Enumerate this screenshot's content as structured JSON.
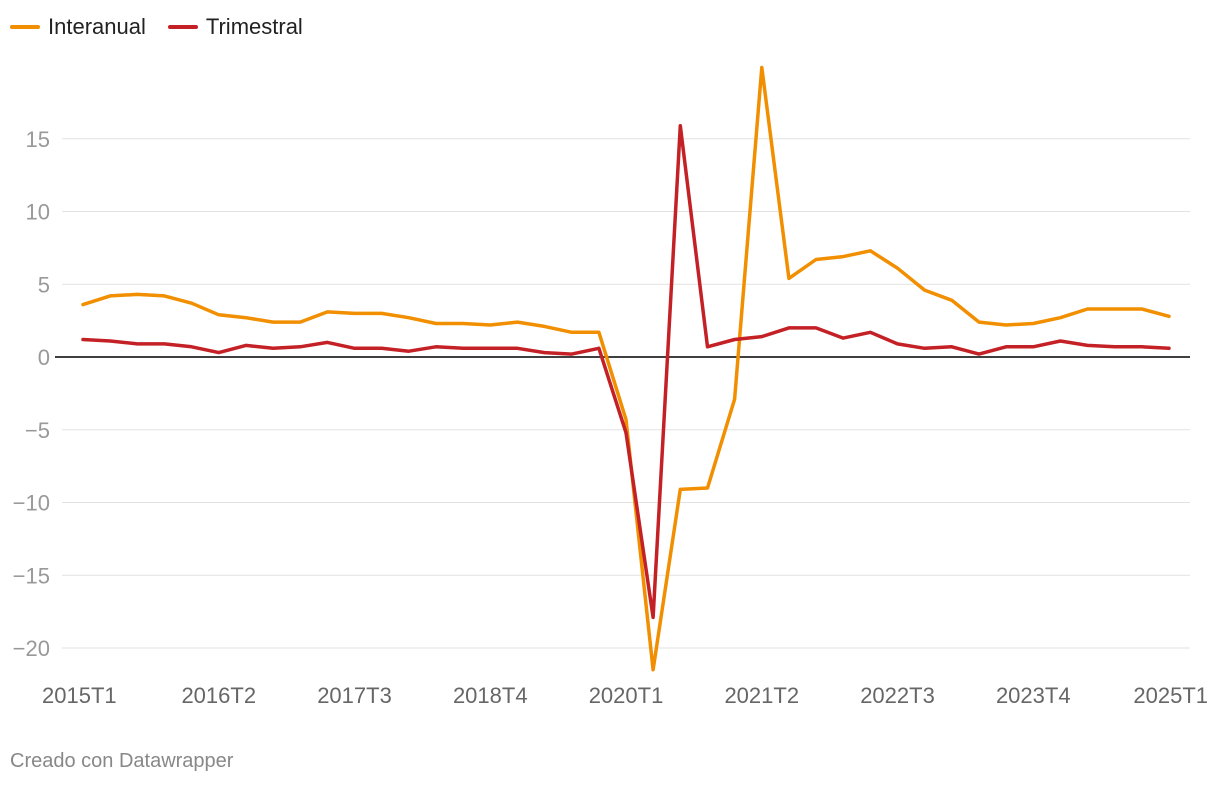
{
  "legend": {
    "items": [
      {
        "label": "Interanual",
        "color": "#f18f01"
      },
      {
        "label": "Trimestral",
        "color": "#c42126"
      }
    ]
  },
  "footer": {
    "text": "Creado con Datawrapper"
  },
  "chart_data": {
    "type": "line",
    "title": "",
    "xlabel": "",
    "ylabel": "",
    "ylim": [
      -22,
      20
    ],
    "y_ticks": [
      15,
      10,
      5,
      0,
      -5,
      -10,
      -15,
      -20
    ],
    "y_tick_labels": [
      "15",
      "10",
      "5",
      "0",
      "−5",
      "−10",
      "−15",
      "−20"
    ],
    "x_tick_labels": [
      "2015T1",
      "2016T2",
      "2017T3",
      "2018T4",
      "2020T1",
      "2021T2",
      "2022T3",
      "2023T4",
      "2025T1"
    ],
    "grid": true,
    "legend_position": "top-left",
    "x": [
      "2015T1",
      "2015T2",
      "2015T3",
      "2015T4",
      "2016T1",
      "2016T2",
      "2016T3",
      "2016T4",
      "2017T1",
      "2017T2",
      "2017T3",
      "2017T4",
      "2018T1",
      "2018T2",
      "2018T3",
      "2018T4",
      "2019T1",
      "2019T2",
      "2019T3",
      "2019T4",
      "2020T1",
      "2020T2",
      "2020T3",
      "2020T4",
      "2021T1",
      "2021T2",
      "2021T3",
      "2021T4",
      "2022T1",
      "2022T2",
      "2022T3",
      "2022T4",
      "2023T1",
      "2023T2",
      "2023T3",
      "2023T4",
      "2024T1",
      "2024T2",
      "2024T3",
      "2024T4",
      "2025T1"
    ],
    "series": [
      {
        "name": "Interanual",
        "color": "#f18f01",
        "values": [
          3.6,
          4.2,
          4.3,
          4.2,
          3.7,
          2.9,
          2.7,
          2.4,
          2.4,
          3.1,
          3.0,
          3.0,
          2.7,
          2.3,
          2.3,
          2.2,
          2.4,
          2.1,
          1.7,
          1.7,
          -4.3,
          -21.5,
          -9.1,
          -9.0,
          -2.9,
          19.9,
          5.4,
          6.7,
          6.9,
          7.3,
          6.1,
          4.6,
          3.9,
          2.4,
          2.2,
          2.3,
          2.7,
          3.3,
          3.3,
          3.3,
          2.8
        ]
      },
      {
        "name": "Trimestral",
        "color": "#c42126",
        "values": [
          1.2,
          1.1,
          0.9,
          0.9,
          0.7,
          0.3,
          0.8,
          0.6,
          0.7,
          1.0,
          0.6,
          0.6,
          0.4,
          0.7,
          0.6,
          0.6,
          0.6,
          0.3,
          0.2,
          0.6,
          -5.2,
          -17.9,
          15.9,
          0.7,
          1.2,
          1.4,
          2.0,
          2.0,
          1.3,
          1.7,
          0.9,
          0.6,
          0.7,
          0.2,
          0.7,
          0.7,
          1.1,
          0.8,
          0.7,
          0.7,
          0.6
        ]
      }
    ]
  }
}
